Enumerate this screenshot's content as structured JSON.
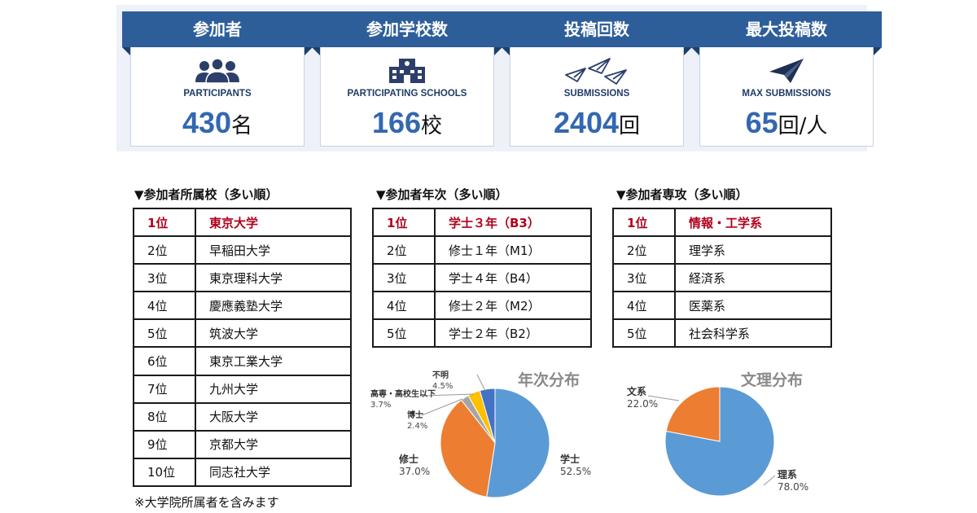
{
  "stats": [
    {
      "title": "参加者",
      "en": "PARTICIPANTS",
      "value": "430",
      "unit": "名",
      "icon": "people-icon"
    },
    {
      "title": "参加学校数",
      "en": "PARTICIPATING SCHOOLS",
      "value": "166",
      "unit": "校",
      "icon": "school-icon"
    },
    {
      "title": "投稿回数",
      "en": "SUBMISSIONS",
      "value": "2404",
      "unit": "回",
      "icon": "paper-planes-icon"
    },
    {
      "title": "最大投稿数",
      "en": "MAX SUBMISSIONS",
      "value": "65",
      "unit": "回/人",
      "icon": "paper-plane-icon"
    }
  ],
  "colors": {
    "ribbon": "#2e5e9a",
    "value": "#3367b0",
    "top_rank": "#b0001c"
  },
  "rankings": {
    "schools": {
      "title": "▼参加者所属校（多い順）",
      "rows": [
        {
          "rank": "1位",
          "name": "東京大学"
        },
        {
          "rank": "2位",
          "name": "早稲田大学"
        },
        {
          "rank": "3位",
          "name": "東京理科大学"
        },
        {
          "rank": "4位",
          "name": "慶應義塾大学"
        },
        {
          "rank": "5位",
          "name": "筑波大学"
        },
        {
          "rank": "6位",
          "name": "東京工業大学"
        },
        {
          "rank": "7位",
          "name": "九州大学"
        },
        {
          "rank": "8位",
          "name": "大阪大学"
        },
        {
          "rank": "9位",
          "name": "京都大学"
        },
        {
          "rank": "10位",
          "name": "同志社大学"
        }
      ],
      "note": "※大学院所属者を含みます"
    },
    "years": {
      "title": "▼参加者年次（多い順）",
      "rows": [
        {
          "rank": "1位",
          "name": "学士３年（B3）"
        },
        {
          "rank": "2位",
          "name": "修士１年（M1）"
        },
        {
          "rank": "3位",
          "name": "学士４年（B4）"
        },
        {
          "rank": "4位",
          "name": "修士２年（M2）"
        },
        {
          "rank": "5位",
          "name": "学士２年（B2）"
        }
      ]
    },
    "majors": {
      "title": "▼参加者専攻（多い順）",
      "rows": [
        {
          "rank": "1位",
          "name": "情報・工学系"
        },
        {
          "rank": "2位",
          "name": "理学系"
        },
        {
          "rank": "3位",
          "name": "経済系"
        },
        {
          "rank": "4位",
          "name": "医薬系"
        },
        {
          "rank": "5位",
          "name": "社会科学系"
        }
      ]
    }
  },
  "chart_data": [
    {
      "type": "pie",
      "title": "年次分布",
      "slices": [
        {
          "name": "学士",
          "value": 52.5,
          "label": "52.5%",
          "color": "#5b9bd5"
        },
        {
          "name": "修士",
          "value": 37.0,
          "label": "37.0%",
          "color": "#ed7d31"
        },
        {
          "name": "博士",
          "value": 2.4,
          "label": "2.4%",
          "color": "#a5a5a5"
        },
        {
          "name": "高専・高校生以下",
          "value": 3.7,
          "label": "3.7%",
          "color": "#ffc000"
        },
        {
          "name": "不明",
          "value": 4.5,
          "label": "4.5%",
          "color": "#4472c4"
        }
      ]
    },
    {
      "type": "pie",
      "title": "文理分布",
      "slices": [
        {
          "name": "理系",
          "value": 78.0,
          "label": "78.0%",
          "color": "#5b9bd5"
        },
        {
          "name": "文系",
          "value": 22.0,
          "label": "22.0%",
          "color": "#ed7d31"
        }
      ]
    }
  ]
}
